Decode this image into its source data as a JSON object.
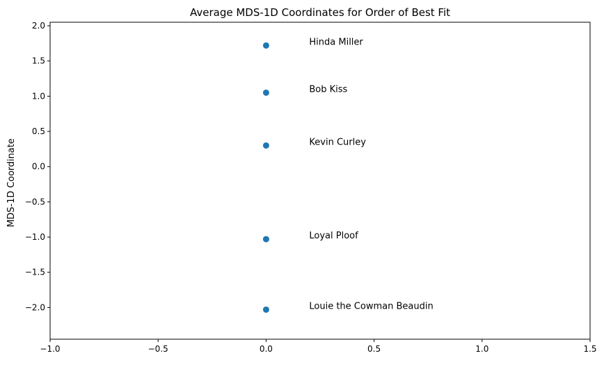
{
  "chart_data": {
    "type": "scatter",
    "title": "Average MDS-1D Coordinates for Order of Best Fit",
    "xlabel": "",
    "ylabel": "MDS-1D Coordinate",
    "xlim": [
      -1.0,
      1.5
    ],
    "ylim": [
      -2.45,
      2.05
    ],
    "x_ticks": [
      -1.0,
      -0.5,
      0.0,
      0.5,
      1.0,
      1.5
    ],
    "x_tick_labels": [
      "−1.0",
      "−0.5",
      "0.0",
      "0.5",
      "1.0",
      "1.5"
    ],
    "y_ticks": [
      -2.0,
      -1.5,
      -1.0,
      -0.5,
      0.0,
      0.5,
      1.0,
      1.5,
      2.0
    ],
    "y_tick_labels": [
      "−2.0",
      "−1.5",
      "−1.0",
      "−0.5",
      "0.0",
      "0.5",
      "1.0",
      "1.5",
      "2.0"
    ],
    "grid": false,
    "marker_color": "#1f77b4",
    "points": [
      {
        "label": "Hinda Miller",
        "x": 0.0,
        "y": 1.72
      },
      {
        "label": "Bob Kiss",
        "x": 0.0,
        "y": 1.05
      },
      {
        "label": "Kevin Curley",
        "x": 0.0,
        "y": 0.3
      },
      {
        "label": "Loyal Ploof",
        "x": 0.0,
        "y": -1.03
      },
      {
        "label": "Louie the Cowman Beaudin",
        "x": 0.0,
        "y": -2.03
      }
    ]
  }
}
